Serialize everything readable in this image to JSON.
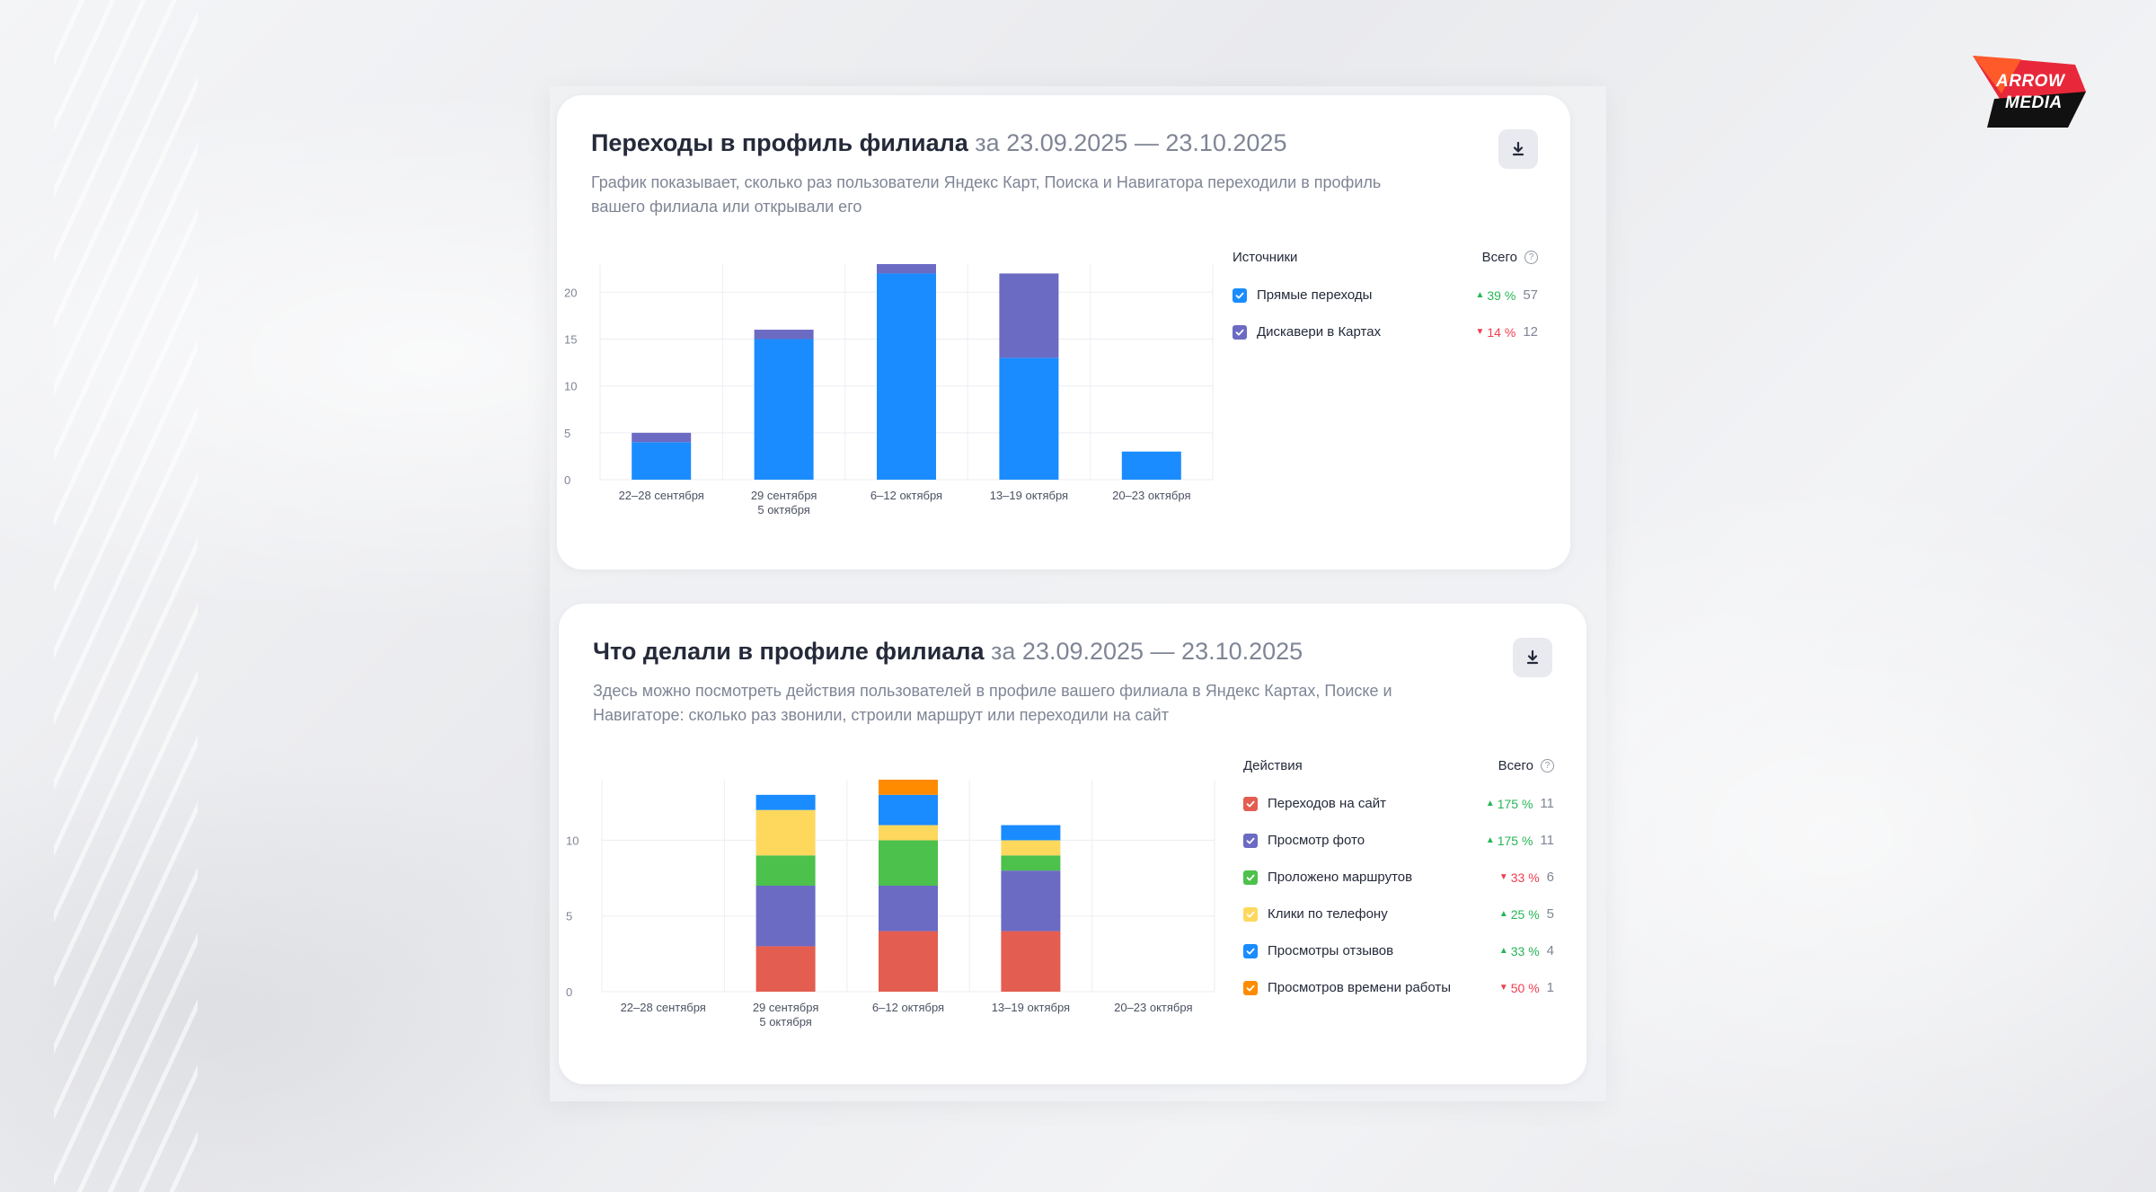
{
  "brand": {
    "line1": "ARROW",
    "line2": "MEDIA"
  },
  "card1": {
    "title": "Переходы в профиль филиала",
    "period": "за 23.09.2025 — 23.10.2025",
    "description": "График показывает, сколько раз пользователи Яндекс Карт, Поиска и Навигатора переходили в профиль вашего филиала или открывали его",
    "legend": {
      "header_left": "Источники",
      "header_right": "Всего",
      "items": [
        {
          "label": "Прямые переходы",
          "color": "#1a8cff",
          "change": "39 %",
          "direction": "up",
          "total": "57"
        },
        {
          "label": "Дискавери в Картах",
          "color": "#6b6bc4",
          "change": "14 %",
          "direction": "down",
          "total": "12"
        }
      ]
    }
  },
  "card2": {
    "title": "Что делали в профиле филиала",
    "period": "за 23.09.2025 — 23.10.2025",
    "description": "Здесь можно посмотреть действия пользователей в профиле вашего филиала в Яндекс Картах, Поиске и Навигаторе: сколько раз звонили, строили маршрут или переходили на сайт",
    "legend": {
      "header_left": "Действия",
      "header_right": "Всего",
      "items": [
        {
          "label": "Переходов на сайт",
          "color": "#e35d50",
          "change": "175 %",
          "direction": "up",
          "total": "11"
        },
        {
          "label": "Просмотр фото",
          "color": "#6b6bc4",
          "change": "175 %",
          "direction": "up",
          "total": "11"
        },
        {
          "label": "Проложено маршрутов",
          "color": "#4cc14c",
          "change": "33 %",
          "direction": "down",
          "total": "6"
        },
        {
          "label": "Клики по телефону",
          "color": "#fdd85d",
          "change": "25 %",
          "direction": "up",
          "total": "5"
        },
        {
          "label": "Просмотры отзывов",
          "color": "#1a8cff",
          "change": "33 %",
          "direction": "up",
          "total": "4"
        },
        {
          "label": "Просмотров времени работы",
          "color": "#ff8c00",
          "change": "50 %",
          "direction": "down",
          "total": "1"
        }
      ]
    }
  },
  "chart_data": [
    {
      "type": "bar",
      "stacked": true,
      "categories": [
        [
          "22–28 сентября"
        ],
        [
          "29 сентября",
          "5 октября"
        ],
        [
          "6–12 октября"
        ],
        [
          "13–19 октября"
        ],
        [
          "20–23 октября"
        ]
      ],
      "ylim": [
        0,
        23
      ],
      "yticks": [
        0,
        5,
        10,
        15,
        20
      ],
      "grid": true,
      "series": [
        {
          "name": "Прямые переходы",
          "color": "#1a8cff",
          "values": [
            4,
            15,
            22,
            13,
            3
          ]
        },
        {
          "name": "Дискавери в Картах",
          "color": "#6b6bc4",
          "values": [
            1,
            1,
            1,
            9,
            0
          ]
        }
      ]
    },
    {
      "type": "bar",
      "stacked": true,
      "categories": [
        [
          "22–28 сентября"
        ],
        [
          "29 сентября",
          "5 октября"
        ],
        [
          "6–12 октября"
        ],
        [
          "13–19 октября"
        ],
        [
          "20–23 октября"
        ]
      ],
      "ylim": [
        0,
        14
      ],
      "yticks": [
        0,
        5,
        10
      ],
      "grid": true,
      "series": [
        {
          "name": "Переходов на сайт",
          "color": "#e35d50",
          "values": [
            0,
            3,
            4,
            4,
            0
          ]
        },
        {
          "name": "Просмотр фото",
          "color": "#6b6bc4",
          "values": [
            0,
            4,
            3,
            4,
            0
          ]
        },
        {
          "name": "Проложено маршрутов",
          "color": "#4cc14c",
          "values": [
            0,
            2,
            3,
            1,
            0
          ]
        },
        {
          "name": "Клики по телефону",
          "color": "#fdd85d",
          "values": [
            0,
            3,
            1,
            1,
            0
          ]
        },
        {
          "name": "Просмотры отзывов",
          "color": "#1a8cff",
          "values": [
            0,
            1,
            2,
            1,
            0
          ]
        },
        {
          "name": "Просмотров времени работы",
          "color": "#ff8c00",
          "values": [
            0,
            0,
            1,
            0,
            0
          ]
        }
      ]
    }
  ]
}
